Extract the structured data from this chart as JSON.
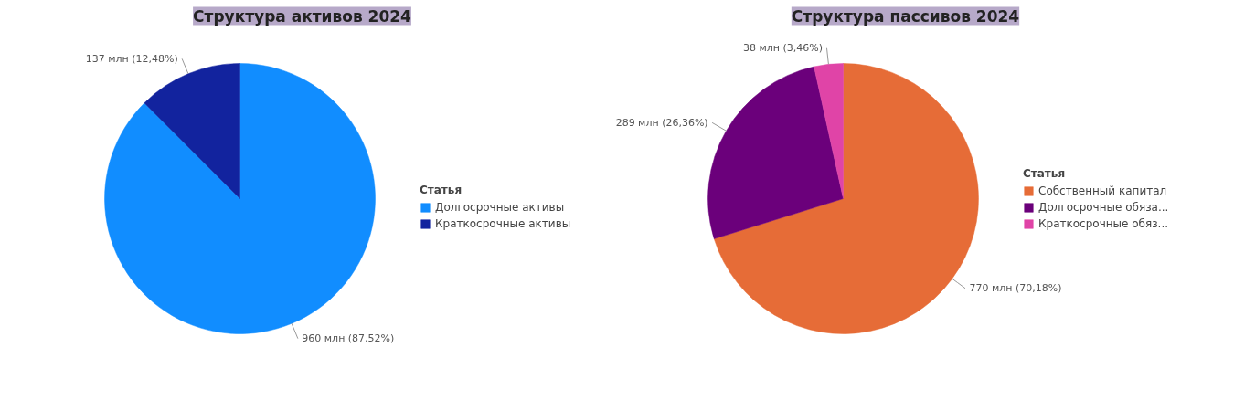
{
  "chart_data": [
    {
      "type": "pie",
      "title": "Структура активов 2024",
      "legend_title": "Статья",
      "legend": "right",
      "categories": [
        "Долгосрочные активы",
        "Краткосрочные активы"
      ],
      "values": [
        960,
        137
      ],
      "colors": [
        "#118dff",
        "#12239e"
      ],
      "value_labels": [
        "960 млн (87,52%)",
        "137 млн (12,48%)"
      ]
    },
    {
      "type": "pie",
      "title": "Структура пассивов 2024",
      "legend_title": "Статья",
      "legend": "right",
      "categories": [
        "Собственный капитал",
        "Долгосрочные обяза...",
        "Краткосрочные обяз..."
      ],
      "values": [
        770,
        289,
        38
      ],
      "colors": [
        "#e66c37",
        "#6b007b",
        "#e044a7"
      ],
      "value_labels": [
        "770 млн (70,18%)",
        "289 млн (26,36%)",
        "38 млн (3,46%)"
      ]
    }
  ]
}
